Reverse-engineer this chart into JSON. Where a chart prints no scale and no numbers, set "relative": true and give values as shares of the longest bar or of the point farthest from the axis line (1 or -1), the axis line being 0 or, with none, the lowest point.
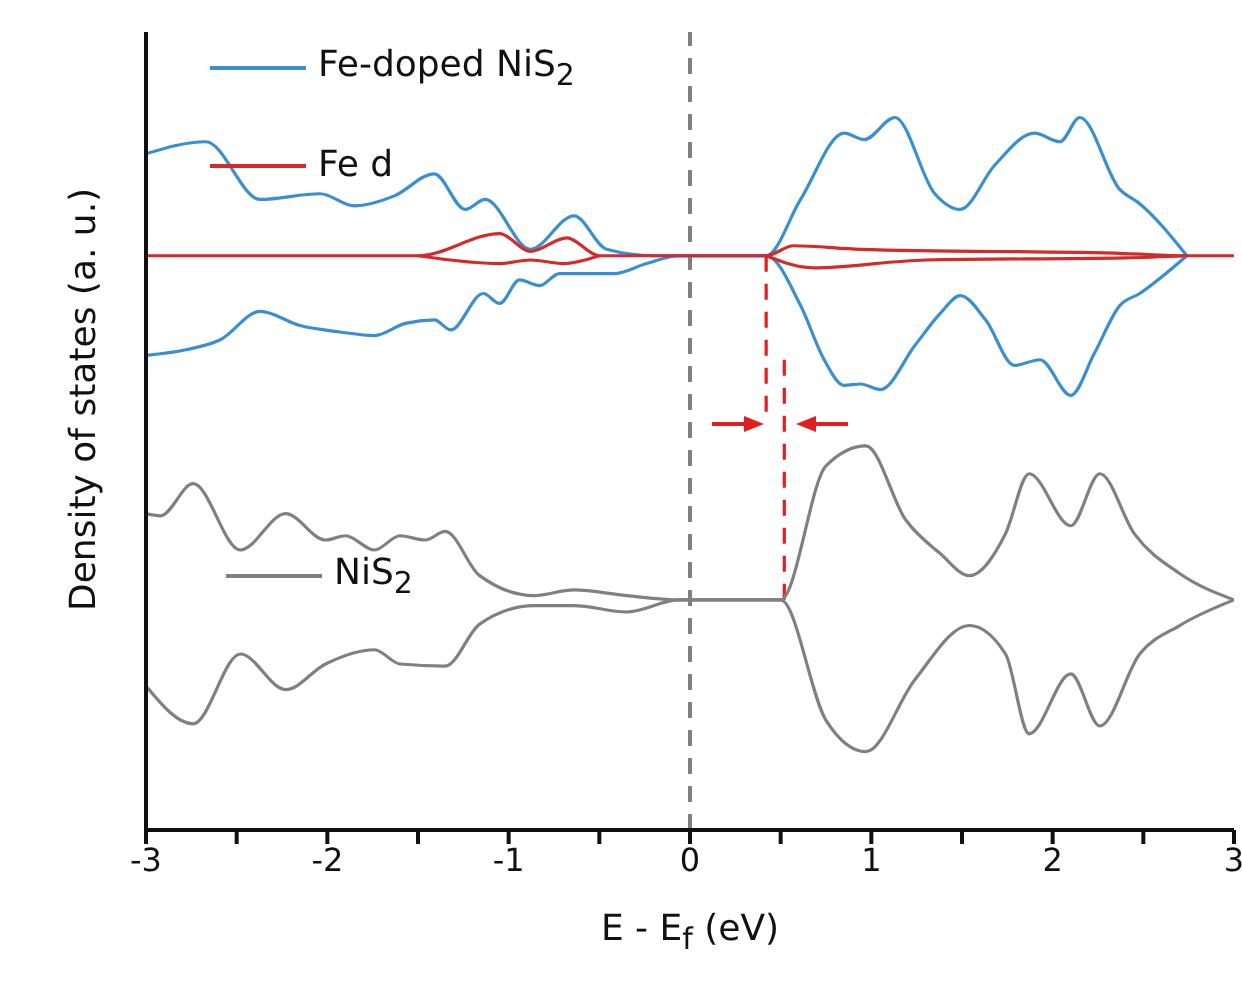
{
  "chart_data": {
    "type": "line",
    "relative": true,
    "xlabel": "E - E$_{f}$ (eV)",
    "ylabel": "Density of states (a. u.)",
    "xlim": [
      -3,
      3
    ],
    "xticks": [
      -3,
      {
        "value": -2.5,
        "label": null
      },
      -2,
      {
        "value": -1.5,
        "label": null
      },
      -1,
      {
        "value": -0.5,
        "label": null
      },
      0,
      {
        "value": 0.5,
        "label": null
      },
      1,
      {
        "value": 1.5,
        "label": null
      },
      2,
      {
        "value": 2.5,
        "label": null
      },
      3
    ],
    "legend": "top left",
    "marker": "none",
    "line_style": "solid",
    "ref_lines": [
      {
        "axis": "x",
        "value": 0,
        "color": "#808080",
        "line_style": "dashed"
      }
    ],
    "series": [
      {
        "name": "Fe-doped NiS$_{2}$",
        "color": "#3a8fd0",
        "x": [
          -3,
          -2.67,
          -2.37,
          -2.04,
          -1.85,
          -1.63,
          -1.41,
          -1.24,
          -1.13,
          -0.88,
          -0.64,
          -0.46,
          -0.2,
          0.42,
          0.61,
          0.85,
          0.96,
          1.13,
          1.35,
          1.49,
          1.68,
          1.9,
          2.04,
          2.15,
          2.37,
          2.48,
          2.74
        ],
        "values": [
          0.949,
          0.966,
          0.885,
          0.893,
          0.876,
          0.89,
          0.921,
          0.871,
          0.885,
          0.815,
          0.862,
          0.815,
          0.806,
          0.806,
          0.885,
          0.978,
          0.969,
          1,
          0.893,
          0.871,
          0.933,
          0.978,
          0.966,
          1,
          0.899,
          0.879,
          0.806
        ]
      },
      {
        "color": "#3a8fd0",
        "x": [
          -3,
          -2.78,
          -2.59,
          -2.37,
          -2.15,
          -1.93,
          -1.74,
          -1.57,
          -1.41,
          -1.32,
          -1.14,
          -1.05,
          -0.94,
          -0.83,
          -0.72,
          -0.42,
          -0.24,
          -0.06,
          0.42,
          0.61,
          0.74,
          0.85,
          0.94,
          1.05,
          1.24,
          1.38,
          1.49,
          1.63,
          1.79,
          1.93,
          2.1,
          2.23,
          2.37,
          2.48,
          2.74
        ],
        "values": [
          0.666,
          0.674,
          0.688,
          0.728,
          0.708,
          0.699,
          0.694,
          0.711,
          0.716,
          0.702,
          0.753,
          0.739,
          0.772,
          0.764,
          0.781,
          0.781,
          0.795,
          0.806,
          0.806,
          0.736,
          0.66,
          0.624,
          0.626,
          0.618,
          0.68,
          0.725,
          0.75,
          0.716,
          0.652,
          0.66,
          0.61,
          0.669,
          0.736,
          0.753,
          0.806
        ]
      },
      {
        "name": "Fe d",
        "color": "#d42a2a",
        "x": [
          -3,
          -1.5,
          -1.05,
          -0.88,
          -0.68,
          -0.5,
          0.42,
          0.57,
          0.94,
          2.4,
          2.74,
          3
        ],
        "values": [
          0.806,
          0.806,
          0.837,
          0.812,
          0.831,
          0.806,
          0.806,
          0.82,
          0.815,
          0.809,
          0.806,
          0.806
        ]
      },
      {
        "color": "#d42a2a",
        "x": [
          -1.5,
          -1.05,
          -0.88,
          -0.7,
          -0.5,
          0,
          0.42,
          0.68,
          1.3,
          2.4,
          2.74
        ],
        "values": [
          0.806,
          0.795,
          0.8,
          0.795,
          0.806,
          null,
          0.806,
          0.789,
          0.8,
          0.803,
          0.806
        ]
      },
      {
        "color": "#e02020",
        "line_style": "dashed",
        "x": [
          0.42,
          0.42
        ],
        "values": [
          0.806,
          0.58
        ]
      },
      {
        "color": "#e02020",
        "line_style": "dashed",
        "x": [
          0.52,
          0.52
        ],
        "values": [
          0.66,
          0.323
        ]
      },
      {
        "name": "NiS$_{2}$",
        "color": "#808080",
        "x": [
          -3,
          -2.92,
          -2.74,
          -2.48,
          -2.23,
          -2.01,
          -1.9,
          -1.74,
          -1.6,
          -1.46,
          -1.35,
          -1.16,
          -0.86,
          -0.64,
          -0.35,
          -0.06,
          0.5,
          0.75,
          0.97,
          1.19,
          1.38,
          1.54,
          1.74,
          1.87,
          2.1,
          2.26,
          2.45,
          2.7,
          3
        ],
        "values": [
          0.444,
          0.441,
          0.486,
          0.393,
          0.444,
          0.407,
          0.413,
          0.393,
          0.413,
          0.407,
          0.419,
          0.357,
          0.329,
          0.337,
          0.329,
          0.323,
          0.323,
          0.511,
          0.539,
          0.435,
          0.388,
          0.357,
          0.416,
          0.5,
          0.427,
          0.5,
          0.416,
          0.36,
          0.323
        ]
      },
      {
        "color": "#808080",
        "x": [
          -3,
          -2.74,
          -2.48,
          -2.23,
          -2.01,
          -1.74,
          -1.6,
          -1.35,
          -1.16,
          -0.86,
          -0.64,
          -0.35,
          -0.06,
          0.5,
          0.75,
          0.97,
          1.24,
          1.54,
          1.74,
          1.87,
          2.1,
          2.26,
          2.48,
          2.7,
          3
        ],
        "values": [
          0.202,
          0.149,
          0.247,
          0.197,
          0.233,
          0.253,
          0.233,
          0.23,
          0.289,
          0.315,
          0.315,
          0.306,
          0.323,
          0.323,
          0.154,
          0.11,
          0.211,
          0.287,
          0.247,
          0.135,
          0.219,
          0.146,
          0.247,
          0.287,
          0.323
        ]
      }
    ]
  }
}
